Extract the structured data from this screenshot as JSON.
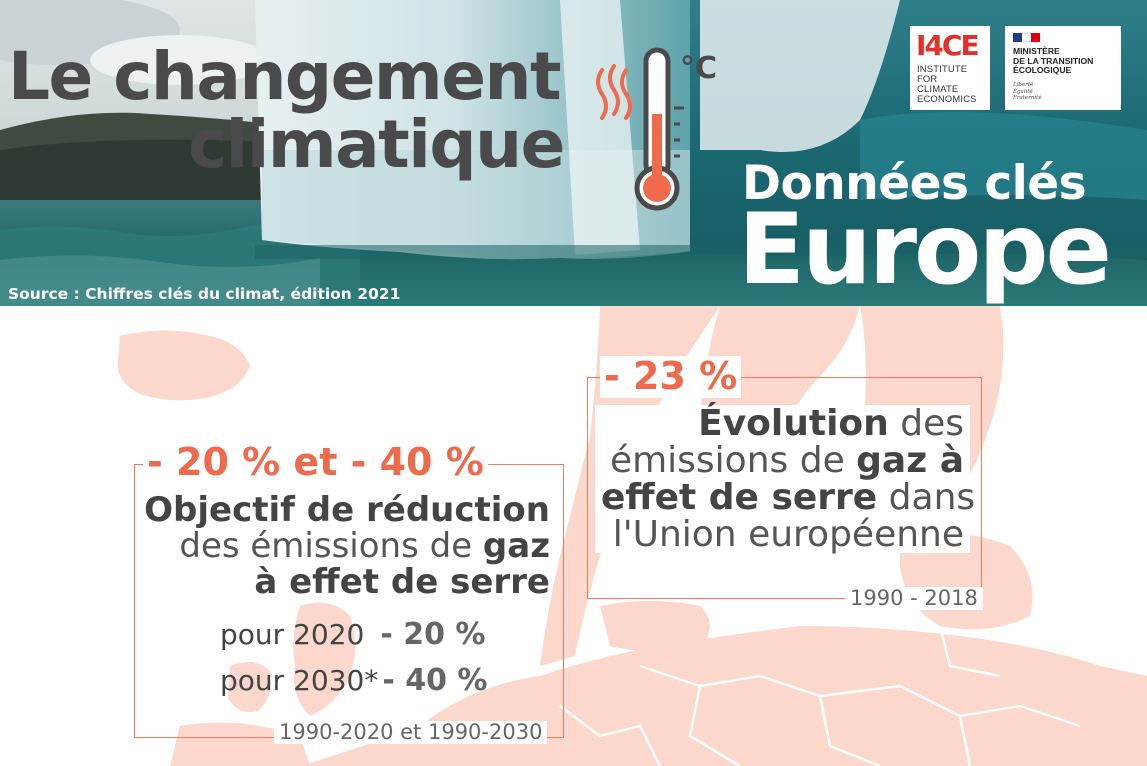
{
  "header": {
    "title_line1": "Le changement",
    "title_line2": "climatique",
    "unit": "°C",
    "subtitle": "Données clés",
    "region": "Europe",
    "source": "Source : Chiffres clés du climat, édition 2021"
  },
  "logos": {
    "i4ce_mark": "I4CE",
    "i4ce_line1": "INSTITUTE FOR",
    "i4ce_line2": "CLIMATE",
    "i4ce_line3": "ECONOMICS",
    "ministry_line1": "MINISTÈRE",
    "ministry_line2": "DE LA TRANSITION",
    "ministry_line3": "ÉCOLOGIQUE",
    "motto_line1": "Liberté",
    "motto_line2": "Égalité",
    "motto_line3": "Fraternité"
  },
  "evolution": {
    "value": "- 23 %",
    "text_bold1": "Évolution",
    "text_1": " des",
    "text_2": "émissions de ",
    "text_bold2": "gaz à",
    "text_bold3": "effet de serre",
    "text_3": " dans",
    "text_4": "l'Union européenne",
    "period": "1990 - 2018"
  },
  "objectif": {
    "value": "- 20 % et - 40 %",
    "line1": "Objectif de réduction",
    "line2": "des émissions de ",
    "line2_bold": "gaz",
    "line3": "à effet de serre",
    "row1_label": "pour 2020",
    "row1_value": "- 20 %",
    "row2_label": "pour 2030*",
    "row2_value": "- 40 %",
    "period": "1990-2020 et 1990-2030"
  },
  "colors": {
    "accent": "#ee6a4c",
    "map": "#fbd7cc",
    "text": "#4a4a4c"
  }
}
